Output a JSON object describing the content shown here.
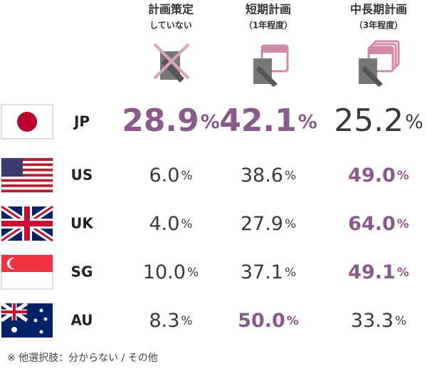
{
  "columns": [
    {
      "title": "計画策定",
      "subtitle": "していない"
    },
    {
      "title": "短期計画",
      "subtitle": "（1年程度）"
    },
    {
      "title": "中長期計画",
      "subtitle": "（3年程度）"
    }
  ],
  "unit": "%",
  "rows": [
    {
      "country": "JP",
      "values": [
        "28.9",
        "42.1",
        "25.2"
      ],
      "highlight": [
        0,
        1
      ],
      "large": true
    },
    {
      "country": "US",
      "values": [
        "6.0",
        "38.6",
        "49.0"
      ],
      "highlight": [
        2
      ]
    },
    {
      "country": "UK",
      "values": [
        "4.0",
        "27.9",
        "64.0"
      ],
      "highlight": [
        2
      ]
    },
    {
      "country": "SG",
      "values": [
        "10.0",
        "37.1",
        "49.1"
      ],
      "highlight": [
        2
      ]
    },
    {
      "country": "AU",
      "values": [
        "8.3",
        "50.0",
        "33.3"
      ],
      "highlight": [
        1
      ]
    }
  ],
  "note": "※ 他選択肢：分からない / その他"
}
